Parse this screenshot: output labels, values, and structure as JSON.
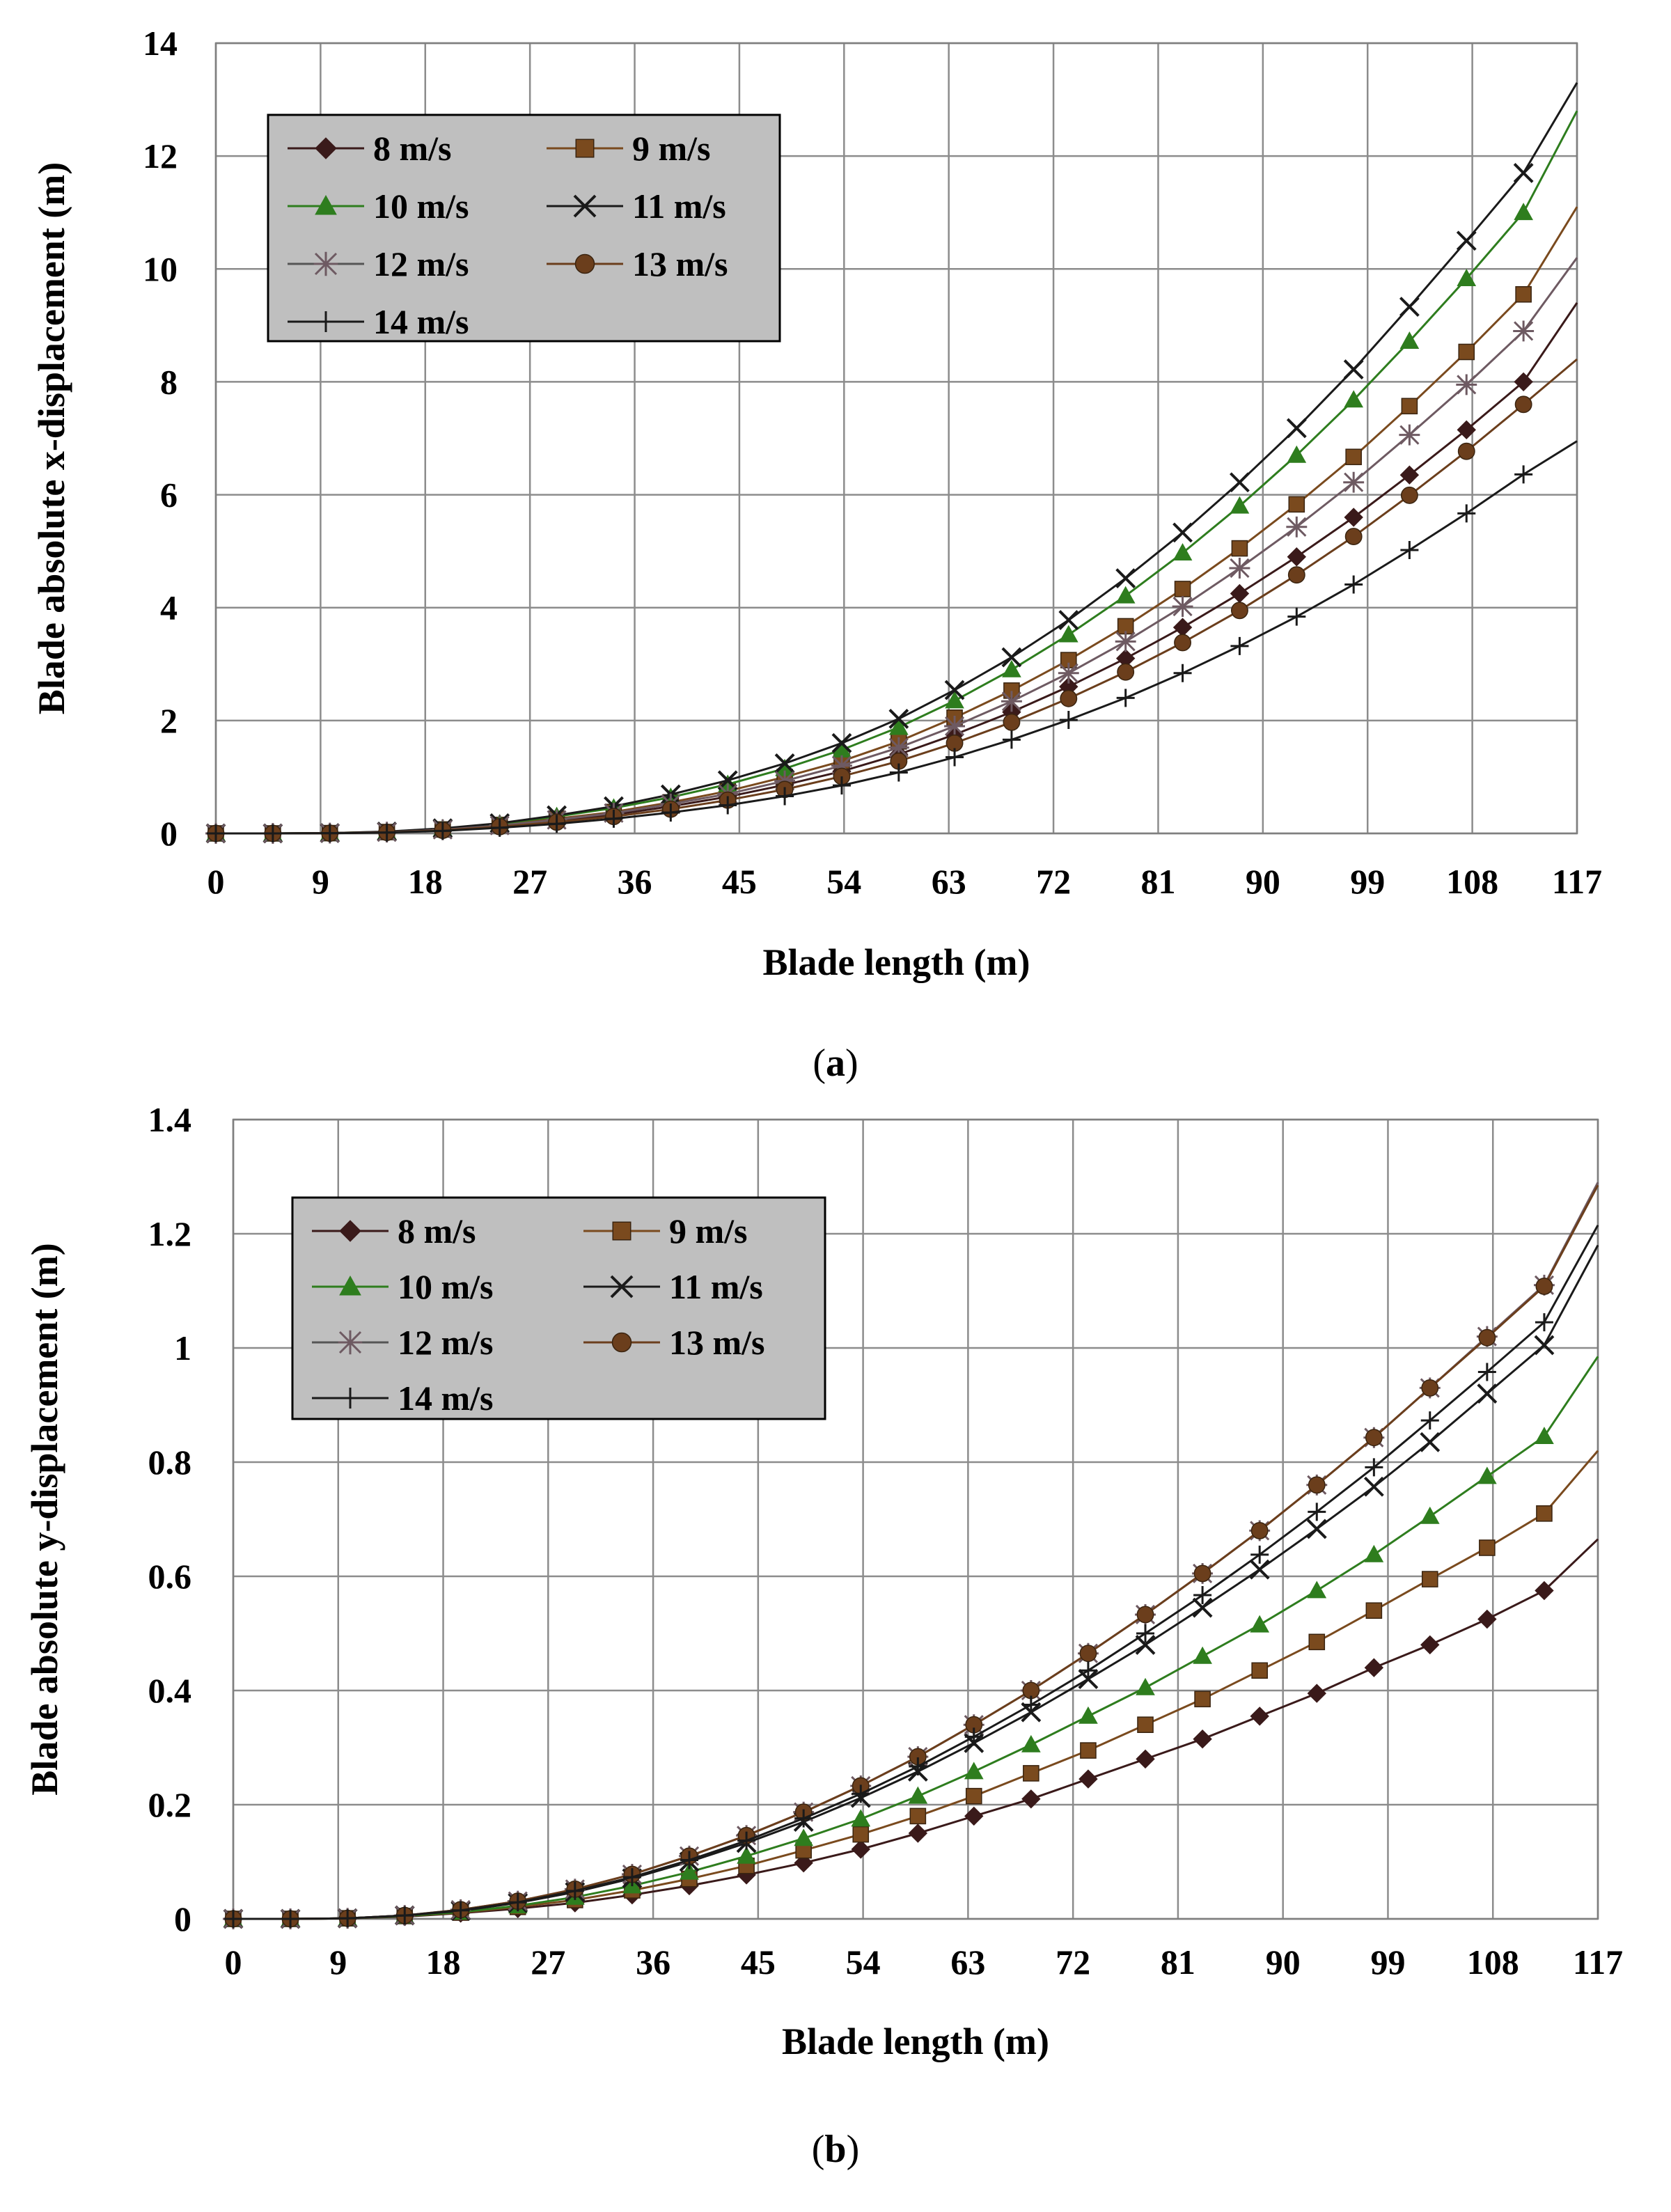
{
  "chart_data": [
    {
      "type": "line",
      "panel": "a",
      "caption": "a",
      "xlabel": "Blade length (m)",
      "ylabel": "Blade absolute x-displacement (m)",
      "xlim": [
        0,
        117
      ],
      "ylim": [
        0,
        14
      ],
      "xticks": [
        0,
        9,
        18,
        27,
        36,
        45,
        54,
        63,
        72,
        81,
        90,
        99,
        108,
        117
      ],
      "yticks": [
        0,
        2,
        4,
        6,
        8,
        10,
        12,
        14
      ],
      "grid": true,
      "legend_position": "top-left",
      "x": [
        0,
        4.9,
        9.8,
        14.7,
        19.5,
        24.4,
        29.3,
        34.2,
        39.1,
        44.0,
        48.9,
        53.8,
        58.7,
        63.5,
        68.4,
        73.3,
        78.2,
        83.1,
        88.0,
        92.9,
        97.8,
        102.6,
        107.5,
        112.4
      ],
      "curve_end_x": 117,
      "series": [
        {
          "name": "8 m/s",
          "marker": "diamond",
          "color": "#3a1a1a",
          "end": 9.4,
          "values": [
            0,
            0,
            0.005,
            0.02,
            0.06,
            0.13,
            0.22,
            0.33,
            0.48,
            0.65,
            0.86,
            1.1,
            1.4,
            1.75,
            2.15,
            2.6,
            3.1,
            3.65,
            4.25,
            4.9,
            5.6,
            6.35,
            7.15,
            8.0
          ]
        },
        {
          "name": "9 m/s",
          "marker": "square",
          "color": "#7a4a1e",
          "end": 11.1,
          "values": [
            0,
            0,
            0.005,
            0.024,
            0.07,
            0.15,
            0.26,
            0.38,
            0.55,
            0.75,
            1.0,
            1.28,
            1.63,
            2.05,
            2.53,
            3.07,
            3.67,
            4.33,
            5.05,
            5.83,
            6.67,
            7.57,
            8.53,
            9.55
          ]
        },
        {
          "name": "10 m/s",
          "marker": "triangle",
          "color": "#2e7d1e",
          "end": 12.8,
          "values": [
            0,
            0,
            0.006,
            0.03,
            0.085,
            0.17,
            0.3,
            0.45,
            0.64,
            0.87,
            1.15,
            1.48,
            1.88,
            2.35,
            2.9,
            3.52,
            4.21,
            4.97,
            5.8,
            6.7,
            7.68,
            8.72,
            9.83,
            11.0
          ]
        },
        {
          "name": "11 m/s",
          "marker": "x",
          "color": "#1a1a1a",
          "end": 13.3,
          "values": [
            0,
            0,
            0.006,
            0.032,
            0.09,
            0.18,
            0.32,
            0.48,
            0.69,
            0.94,
            1.24,
            1.6,
            2.03,
            2.54,
            3.12,
            3.78,
            4.52,
            5.33,
            6.22,
            7.18,
            8.22,
            9.33,
            10.5,
            11.7
          ]
        },
        {
          "name": "12 m/s",
          "marker": "star",
          "color": "#6e5a62",
          "end": 10.2,
          "values": [
            0,
            0,
            0.005,
            0.022,
            0.065,
            0.14,
            0.24,
            0.36,
            0.52,
            0.7,
            0.93,
            1.2,
            1.52,
            1.9,
            2.34,
            2.84,
            3.4,
            4.02,
            4.7,
            5.43,
            6.22,
            7.06,
            7.95,
            8.9
          ]
        },
        {
          "name": "13 m/s",
          "marker": "circle",
          "color": "#6b3e1c",
          "end": 8.4,
          "values": [
            0,
            0,
            0.004,
            0.018,
            0.055,
            0.12,
            0.2,
            0.3,
            0.43,
            0.59,
            0.78,
            1.01,
            1.28,
            1.6,
            1.97,
            2.39,
            2.86,
            3.38,
            3.95,
            4.58,
            5.26,
            5.99,
            6.77,
            7.6
          ]
        },
        {
          "name": "14 m/s",
          "marker": "plus",
          "color": "#1a1a1a",
          "end": 6.95,
          "values": [
            0,
            0,
            0.004,
            0.015,
            0.045,
            0.1,
            0.17,
            0.26,
            0.37,
            0.5,
            0.66,
            0.85,
            1.08,
            1.35,
            1.66,
            2.01,
            2.4,
            2.84,
            3.32,
            3.84,
            4.41,
            5.02,
            5.67,
            6.36
          ]
        }
      ]
    },
    {
      "type": "line",
      "panel": "b",
      "caption": "b",
      "xlabel": "Blade length (m)",
      "ylabel": "Blade absolute y-displacement (m)",
      "xlim": [
        0,
        117
      ],
      "ylim": [
        0,
        1.4
      ],
      "xticks": [
        0,
        9,
        18,
        27,
        36,
        45,
        54,
        63,
        72,
        81,
        90,
        99,
        108,
        117
      ],
      "yticks": [
        0,
        0.2,
        0.4,
        0.6,
        0.8,
        1,
        1.2,
        1.4
      ],
      "grid": true,
      "legend_position": "top-left",
      "x": [
        0,
        4.9,
        9.8,
        14.7,
        19.5,
        24.4,
        29.3,
        34.2,
        39.1,
        44.0,
        48.9,
        53.8,
        58.7,
        63.5,
        68.4,
        73.3,
        78.2,
        83.1,
        88.0,
        92.9,
        97.8,
        102.6,
        107.5,
        112.4
      ],
      "curve_end_x": 117,
      "series": [
        {
          "name": "8 m/s",
          "marker": "diamond",
          "color": "#3a1a1a",
          "end": 0.665,
          "values": [
            0,
            0,
            0.001,
            0.004,
            0.01,
            0.018,
            0.028,
            0.042,
            0.058,
            0.077,
            0.098,
            0.122,
            0.15,
            0.18,
            0.21,
            0.245,
            0.28,
            0.315,
            0.355,
            0.395,
            0.44,
            0.48,
            0.525,
            0.575
          ]
        },
        {
          "name": "9 m/s",
          "marker": "square",
          "color": "#7a4a1e",
          "end": 0.82,
          "values": [
            0,
            0,
            0.001,
            0.005,
            0.011,
            0.021,
            0.033,
            0.05,
            0.07,
            0.093,
            0.12,
            0.148,
            0.18,
            0.215,
            0.255,
            0.295,
            0.34,
            0.385,
            0.435,
            0.485,
            0.54,
            0.595,
            0.65,
            0.71
          ]
        },
        {
          "name": "10 m/s",
          "marker": "triangle",
          "color": "#2e7d1e",
          "end": 0.985,
          "values": [
            0,
            0,
            0.001,
            0.005,
            0.012,
            0.023,
            0.038,
            0.058,
            0.082,
            0.11,
            0.141,
            0.175,
            0.215,
            0.258,
            0.305,
            0.355,
            0.405,
            0.46,
            0.515,
            0.575,
            0.638,
            0.705,
            0.775,
            0.845
          ]
        },
        {
          "name": "11 m/s",
          "marker": "x",
          "color": "#1a1a1a",
          "end": 1.18,
          "values": [
            0,
            0,
            0.001,
            0.006,
            0.014,
            0.028,
            0.047,
            0.071,
            0.1,
            0.133,
            0.17,
            0.212,
            0.258,
            0.308,
            0.362,
            0.42,
            0.48,
            0.545,
            0.612,
            0.683,
            0.757,
            0.835,
            0.92,
            1.005
          ]
        },
        {
          "name": "12 m/s",
          "marker": "star",
          "color": "#6e5a62",
          "end": 1.29,
          "values": [
            0,
            0,
            0.001,
            0.006,
            0.016,
            0.031,
            0.052,
            0.078,
            0.11,
            0.146,
            0.187,
            0.233,
            0.284,
            0.34,
            0.4,
            0.465,
            0.533,
            0.605,
            0.68,
            0.76,
            0.843,
            0.93,
            1.02,
            1.11
          ]
        },
        {
          "name": "13 m/s",
          "marker": "circle",
          "color": "#6b3e1c",
          "end": 1.285,
          "values": [
            0,
            0,
            0.001,
            0.006,
            0.016,
            0.031,
            0.052,
            0.078,
            0.11,
            0.146,
            0.187,
            0.233,
            0.284,
            0.34,
            0.4,
            0.465,
            0.533,
            0.605,
            0.68,
            0.76,
            0.843,
            0.93,
            1.018,
            1.108
          ]
        },
        {
          "name": "14 m/s",
          "marker": "plus",
          "color": "#1a1a1a",
          "end": 1.215,
          "values": [
            0,
            0,
            0.001,
            0.006,
            0.015,
            0.029,
            0.049,
            0.073,
            0.103,
            0.137,
            0.176,
            0.219,
            0.267,
            0.319,
            0.375,
            0.435,
            0.5,
            0.567,
            0.638,
            0.713,
            0.791,
            0.873,
            0.958,
            1.045
          ]
        }
      ]
    }
  ]
}
